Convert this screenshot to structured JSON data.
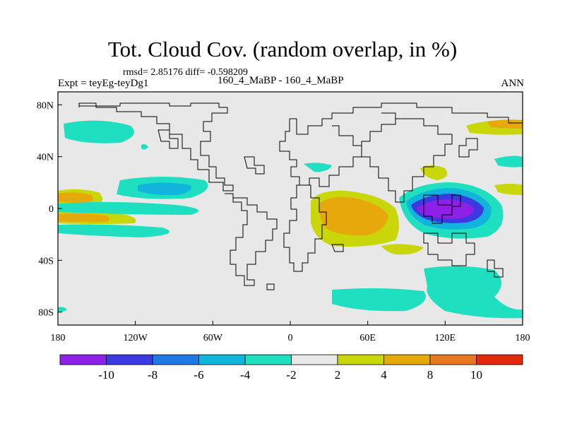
{
  "title": "Tot. Cloud Cov. (random overlap, in %)",
  "stats": "rmsd= 2.85176 diff= -0.598209",
  "experiment": "Expt = teyEg-teyDg1",
  "comparison": "160_4_MaBP - 160_4_MaBP",
  "season": "ANN",
  "map": {
    "lon_range": [
      -180,
      180
    ],
    "lat_range": [
      -90,
      90
    ],
    "x_ticks": [
      {
        "lon": -180,
        "label": "180"
      },
      {
        "lon": -120,
        "label": "120W"
      },
      {
        "lon": -60,
        "label": "60W"
      },
      {
        "lon": 0,
        "label": "0"
      },
      {
        "lon": 60,
        "label": "60E"
      },
      {
        "lon": 120,
        "label": "120E"
      },
      {
        "lon": 180,
        "label": "180"
      }
    ],
    "y_ticks": [
      {
        "lat": 80,
        "label": "80N"
      },
      {
        "lat": 40,
        "label": "40N"
      },
      {
        "lat": 0,
        "label": "0"
      },
      {
        "lat": -40,
        "label": "40S"
      },
      {
        "lat": -80,
        "label": "80S"
      }
    ],
    "background_color": "#e8e8e8"
  },
  "colorbar": {
    "boundaries": [
      "-10",
      "-8",
      "-6",
      "-4",
      "-2",
      "2",
      "4",
      "8",
      "10"
    ],
    "colors": [
      "#8f20e8",
      "#3a3ae0",
      "#1e78e6",
      "#10b4dc",
      "#1ee0c0",
      "#e8e8e8",
      "#c8d60a",
      "#e6a80a",
      "#e8781e",
      "#e02a0a"
    ]
  }
}
